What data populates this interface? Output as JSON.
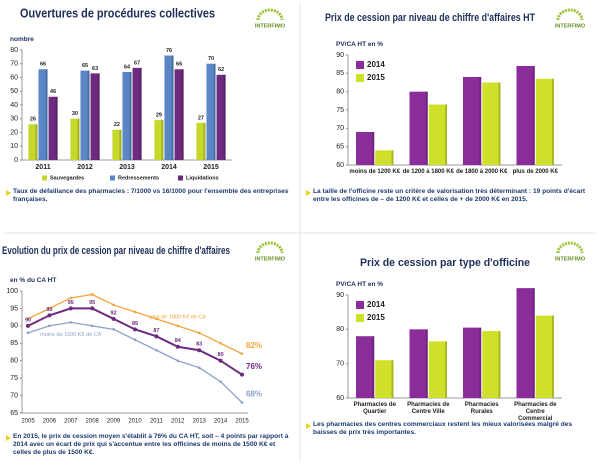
{
  "logo": "INTERFIMO",
  "chart_data": [
    {
      "type": "bar",
      "title": "Ouvertures de procédures collectives",
      "y_label": "nombre",
      "categories": [
        "2011",
        "2012",
        "2013",
        "2014",
        "2015"
      ],
      "series": [
        {
          "name": "Sauvegardes",
          "color": "#c5d82c",
          "values": [
            26,
            30,
            22,
            29,
            27
          ]
        },
        {
          "name": "Redressements",
          "color": "#5a86c5",
          "values": [
            66,
            65,
            64,
            76,
            70
          ]
        },
        {
          "name": "Liquidations",
          "color": "#6e2a7e",
          "values": [
            46,
            63,
            67,
            66,
            62
          ]
        }
      ],
      "ylim": [
        0,
        80
      ],
      "yticks": [
        0,
        10,
        20,
        30,
        40,
        50,
        60,
        70,
        80
      ],
      "data_labels": true,
      "legend": "bottom",
      "note": "Taux de défaillance des pharmacies : 7/1000 vs 16/1000 pour l'ensemble des entreprises françaises."
    },
    {
      "type": "bar",
      "title": "Prix de cession par niveau de chiffre d'affaires HT",
      "y_label": "PV/CA HT en %",
      "categories": [
        "moins de 1200 K€",
        "de 1200 à 1800 K€",
        "de 1800 à 2000 K€",
        "plus de 2000 K€"
      ],
      "series": [
        {
          "name": "2014",
          "color": "#8a2c99",
          "values": [
            69,
            80,
            84,
            87
          ]
        },
        {
          "name": "2015",
          "color": "#cfe02a",
          "values": [
            64,
            76.5,
            82.5,
            83.5
          ]
        }
      ],
      "ylim": [
        60,
        90
      ],
      "yticks": [
        60,
        65,
        70,
        75,
        80,
        85,
        90
      ],
      "data_labels": false,
      "legend": "top-left",
      "note": "La taille de l'officine reste un critère de valorisation très déterminant : 19 points d'écart entre les officines de – de 1200 K€ et celles de + de 2000 K€ en 2015."
    },
    {
      "type": "line",
      "title": "Evolution du prix de cession par niveau de chiffre d'affaires",
      "y_label": "en % du CA HT",
      "categories": [
        "2005",
        "2006",
        "2007",
        "2008",
        "2009",
        "2010",
        "2011",
        "2012",
        "2013",
        "2014",
        "2015"
      ],
      "series": [
        {
          "name": "plus de 1800 K€ de CA",
          "color": "#f4a43c",
          "values": [
            92,
            95,
            98,
            99,
            96,
            94,
            92,
            90,
            88,
            85,
            82
          ],
          "value_labels": [
            null,
            null,
            null,
            null,
            null,
            null,
            null,
            null,
            null,
            null,
            "82%"
          ]
        },
        {
          "color": "#6e2a7e",
          "values": [
            90,
            93,
            95,
            95,
            92,
            89,
            87,
            84,
            83,
            80,
            76
          ],
          "value_labels": [
            "90",
            "93",
            "95",
            "95",
            "92",
            "89",
            "87",
            "84",
            "83",
            "80",
            "76%"
          ]
        },
        {
          "name": "moins de 1500 K€ de CA",
          "color": "#8d9fcc",
          "values": [
            88,
            90,
            91,
            90,
            89,
            86,
            83,
            80,
            78,
            74,
            68
          ],
          "value_labels": [
            null,
            null,
            null,
            null,
            null,
            null,
            null,
            null,
            null,
            null,
            "68%"
          ]
        }
      ],
      "ylim": [
        65,
        100
      ],
      "yticks": [
        65,
        70,
        75,
        80,
        85,
        90,
        95,
        100
      ],
      "note": "En 2015, le prix de cession moyen s'établit à 76% du CA HT, soit – 4 points par rapport à 2014 avec un écart de prix qui s'accentue entre les officines de moins de 1500 K€ et celles de plus de 1500 K€."
    },
    {
      "type": "bar",
      "title": "Prix de cession par type d'officine",
      "y_label": "PV/CA HT en %",
      "categories": [
        "Pharmacies de Quartier",
        "Pharmacies de Centre Ville",
        "Pharmacies Rurales",
        "Pharmacies de Centre Commercial"
      ],
      "series": [
        {
          "name": "2014",
          "color": "#8a2c99",
          "values": [
            78,
            80,
            80.5,
            92
          ]
        },
        {
          "name": "2015",
          "color": "#cfe02a",
          "values": [
            71,
            76.5,
            79.5,
            84
          ]
        }
      ],
      "ylim": [
        60,
        90
      ],
      "yticks": [
        60,
        70,
        80,
        90
      ],
      "data_labels": false,
      "legend": "top-left",
      "note": "Les pharmacies des centres commerciaux restent les mieux valorisées malgré des baisses de prix très importantes."
    }
  ]
}
